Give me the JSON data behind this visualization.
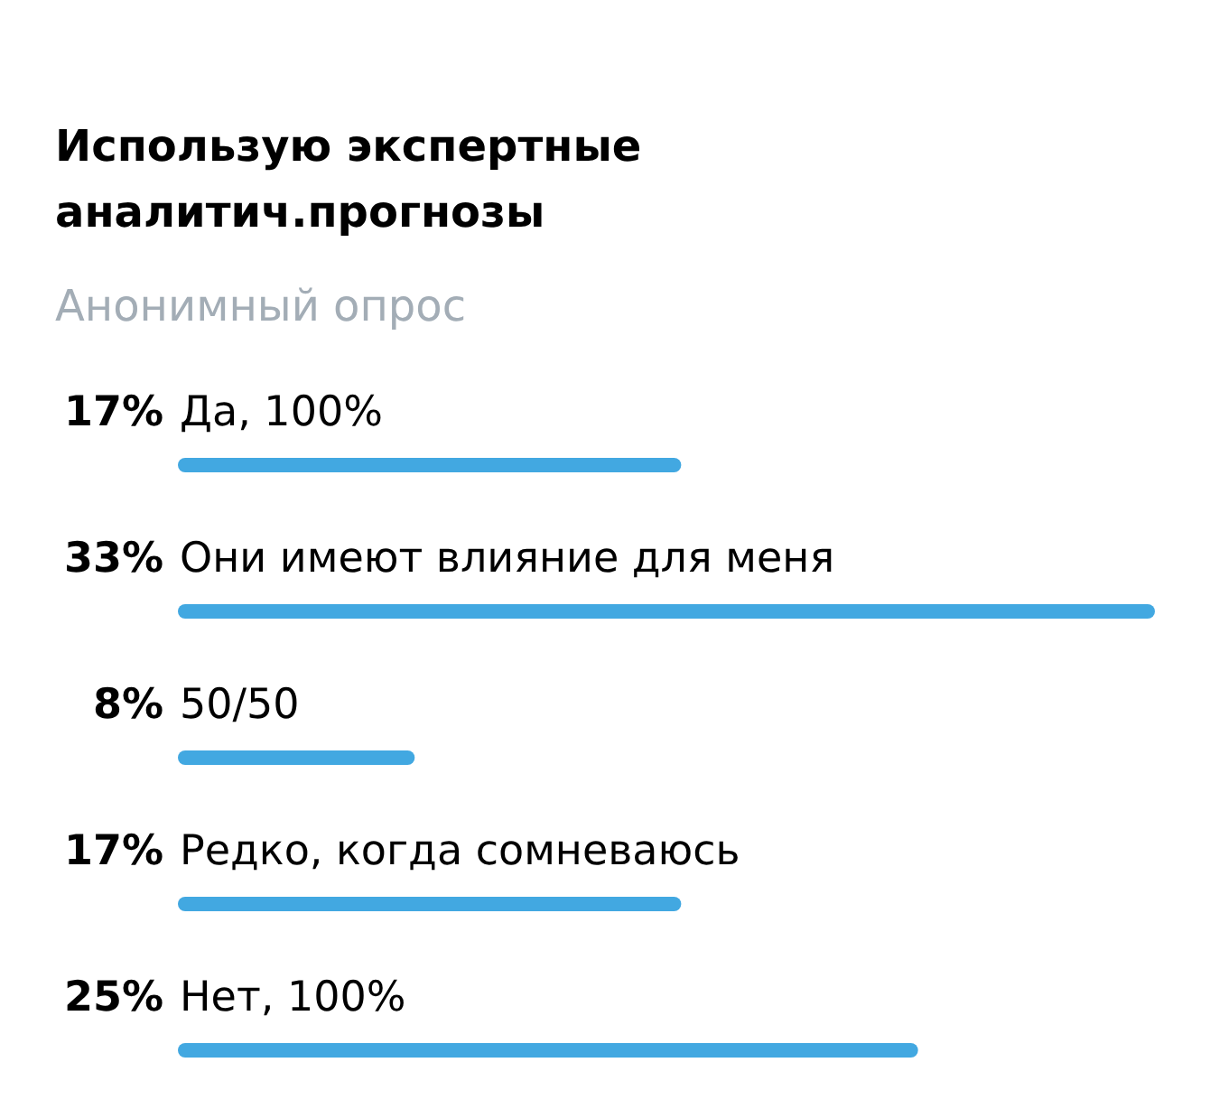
{
  "chart_data": {
    "type": "bar",
    "orientation": "horizontal",
    "title": "Использую экспертные аналитич.прогнозы",
    "subtitle": "Анонимный опрос",
    "categories": [
      "Да, 100%",
      "Они имеют влияние для меня",
      "50/50",
      "Редко, когда сомневаюсь",
      "Нет, 100%"
    ],
    "values": [
      17,
      33,
      8,
      17,
      25
    ],
    "value_labels": [
      "17%",
      "33%",
      "8%",
      "17%",
      "25%"
    ],
    "color": "#42a8e1",
    "tick_labels": false,
    "grid": false
  }
}
